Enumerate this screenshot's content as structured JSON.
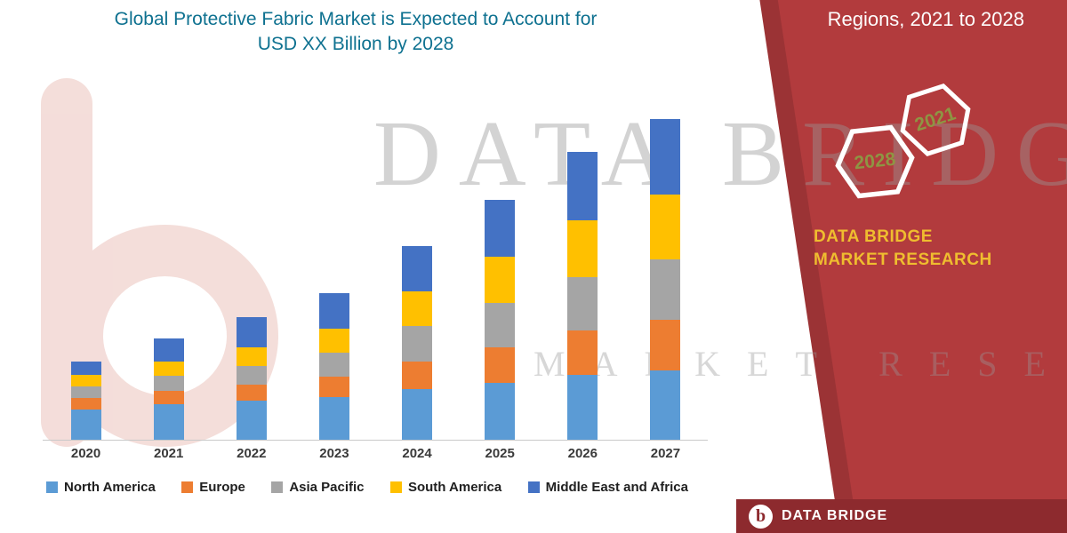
{
  "title": {
    "line1": "Global Protective Fabric Market is Expected to Account for",
    "line2": "USD XX Billion by 2028"
  },
  "watermark": {
    "line1": "DATA BRIDGE",
    "line2": "MARKET RESEARCH"
  },
  "side_panel": {
    "heading": "Regions, 2021 to 2028",
    "hexagons": [
      {
        "label": "2028"
      },
      {
        "label": "2021"
      }
    ],
    "brand": "DATA BRIDGE MARKET RESEARCH",
    "footer_brand": "DATA BRIDGE",
    "logo_letter": "b"
  },
  "colors": {
    "panel_red": "#B23B3D",
    "footer_red": "#8D2A2E",
    "brand_yellow": "#EFBD2F",
    "hex_year": "#8E9543",
    "title_teal": "#0E7190",
    "watermark_gray": "#999999",
    "logo_pink": "#DB9186",
    "axis_text": "#3A3A3A",
    "legend_text": "#1F1F1F"
  },
  "chart_data": {
    "type": "bar",
    "stacked": true,
    "title": "Global Protective Fabric Market is Expected to Account for USD XX Billion by 2028",
    "xlabel": "",
    "ylabel": "",
    "y_axis_visible": false,
    "values_unit": "relative height (USD billions not labeled; y-axis hidden)",
    "legend_position": "bottom",
    "categories": [
      "2020",
      "2021",
      "2022",
      "2023",
      "2024",
      "2025",
      "2026",
      "2027"
    ],
    "series": [
      {
        "name": "North America",
        "color": "#5B9BD5",
        "values": [
          33,
          38,
          42,
          46,
          55,
          62,
          70,
          75
        ]
      },
      {
        "name": "Europe",
        "color": "#ED7D31",
        "values": [
          12,
          15,
          18,
          22,
          30,
          38,
          48,
          55
        ]
      },
      {
        "name": "Asia Pacific",
        "color": "#A5A5A5",
        "values": [
          13,
          16,
          20,
          26,
          38,
          48,
          58,
          65
        ]
      },
      {
        "name": "South America",
        "color": "#FFC000",
        "values": [
          12,
          16,
          20,
          26,
          38,
          50,
          62,
          70
        ]
      },
      {
        "name": "Middle East and Africa",
        "color": "#4472C4",
        "values": [
          15,
          25,
          33,
          39,
          49,
          62,
          74,
          82
        ]
      }
    ],
    "totals": [
      85,
      110,
      133,
      159,
      210,
      260,
      312,
      347
    ]
  }
}
